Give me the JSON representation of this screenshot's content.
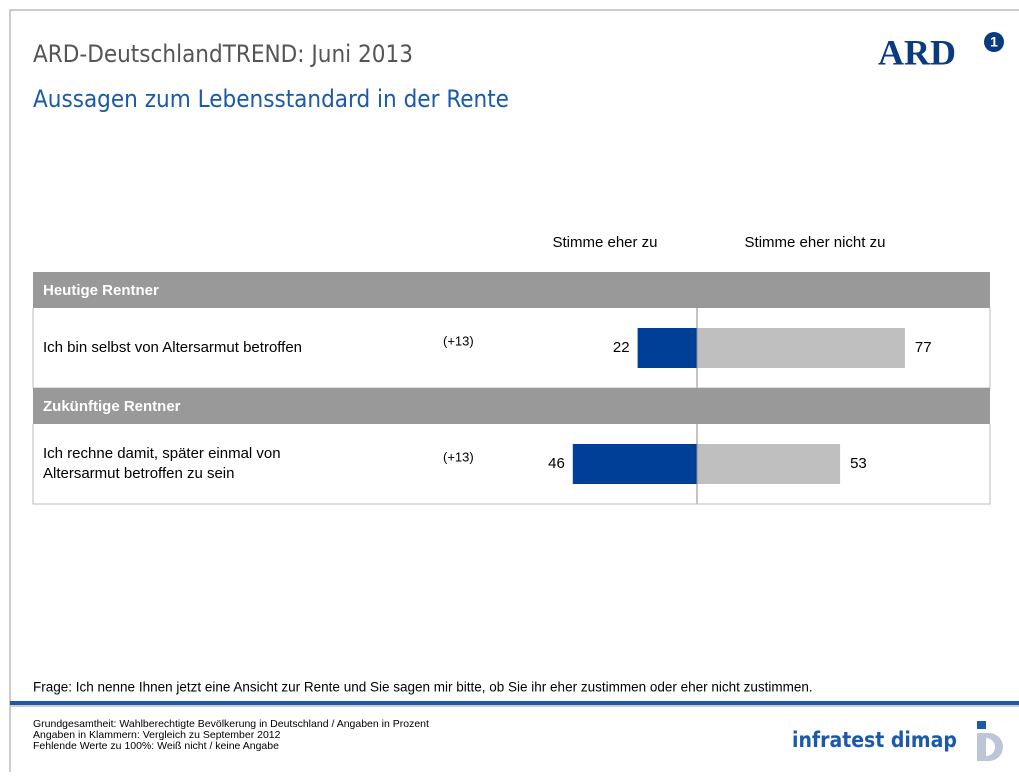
{
  "header": {
    "title": "ARD-DeutschlandTREND: Juni 2013",
    "subtitle": "Aussagen zum Lebensstandard in der Rente",
    "logo": "ARD",
    "logo_number": "1"
  },
  "chart_data": {
    "type": "diverging_bar",
    "groups": [
      "Heutige Rentner",
      "Zukünftige Rentner"
    ],
    "categories": [
      [
        "Ich bin selbst von Altersarmut betroffen"
      ],
      [
        "Ich rechne damit, später einmal von",
        "Altersarmut betroffen zu sein"
      ]
    ],
    "changes": [
      "(+13)",
      "(+13)"
    ],
    "series": [
      {
        "name": "Stimme eher zu",
        "color": "#003f98",
        "values": [
          22,
          46
        ]
      },
      {
        "name": "Stimme eher nicht zu",
        "color": "#bfbfbf",
        "values": [
          77,
          53
        ]
      }
    ]
  },
  "footer": {
    "question": "Frage: Ich nenne Ihnen jetzt eine Ansicht zur Rente und Sie sagen mir bitte, ob Sie ihr eher zustimmen oder eher nicht zustimmen.",
    "notes": [
      "Grundgesamtheit: Wahlberechtigte Bevölkerung in Deutschland / Angaben in Prozent",
      "Angaben in Klammern: Vergleich zu September 2012",
      "Fehlende Werte zu 100%: Weiß nicht / keine Angabe"
    ],
    "brand": "infratest dimap"
  }
}
